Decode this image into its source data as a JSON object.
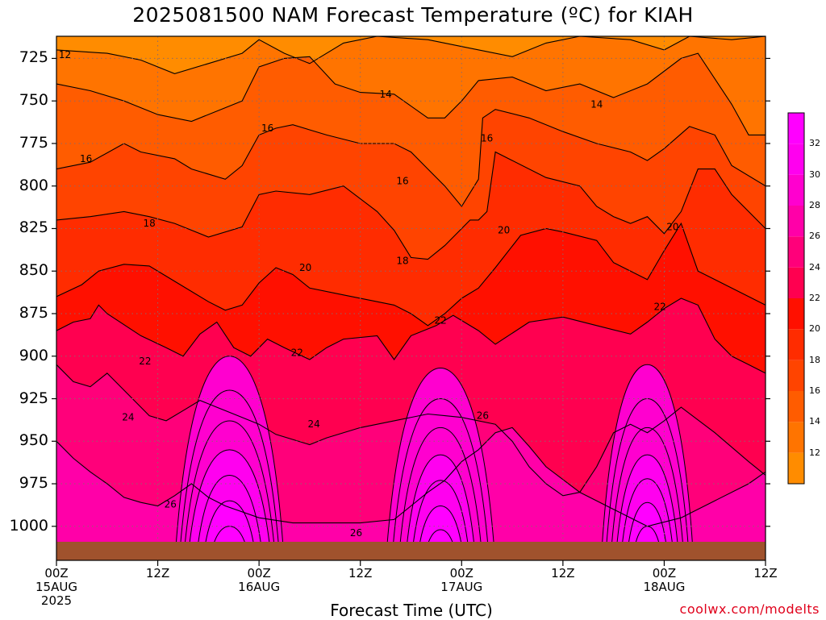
{
  "title": "2025081500 NAM Forecast Temperature (ºC) for KIAH",
  "xlabel": "Forecast Time (UTC)",
  "credit": "coolwx.com/modelts",
  "chart_data": {
    "type": "contour",
    "ylabel": "",
    "y_levels": [
      "725",
      "750",
      "775",
      "800",
      "825",
      "850",
      "875",
      "900",
      "925",
      "950",
      "975",
      "1000"
    ],
    "y_range_hpa": [
      712,
      1020
    ],
    "x_ticks": [
      {
        "hour": 0,
        "lines": [
          "00Z",
          "15AUG",
          "2025"
        ]
      },
      {
        "hour": 12,
        "lines": [
          "12Z"
        ]
      },
      {
        "hour": 24,
        "lines": [
          "00Z",
          "16AUG"
        ]
      },
      {
        "hour": 36,
        "lines": [
          "12Z"
        ]
      },
      {
        "hour": 48,
        "lines": [
          "00Z",
          "17AUG"
        ]
      },
      {
        "hour": 60,
        "lines": [
          "12Z"
        ]
      },
      {
        "hour": 72,
        "lines": [
          "00Z",
          "18AUG"
        ]
      },
      {
        "hour": 84,
        "lines": [
          "12Z"
        ]
      }
    ],
    "x_range_hours": [
      0,
      84
    ],
    "colorbar": {
      "ticks": [
        "12",
        "14",
        "16",
        "18",
        "20",
        "22",
        "24",
        "26",
        "28",
        "30",
        "32"
      ],
      "colors": [
        "#ff8c00",
        "#ff7400",
        "#ff5c00",
        "#ff4400",
        "#ff2c00",
        "#ff1000",
        "#ff0050",
        "#ff007a",
        "#ff00a8",
        "#ff00cf",
        "#ff00ef",
        "#ff00ff"
      ]
    },
    "isotherms": [
      {
        "temp": 12,
        "points": [
          [
            0,
            720
          ],
          [
            6,
            722
          ],
          [
            10,
            726
          ],
          [
            14,
            734
          ],
          [
            18,
            728
          ],
          [
            22,
            722
          ],
          [
            24,
            714
          ],
          [
            27,
            722
          ],
          [
            30,
            728
          ],
          [
            34,
            716
          ],
          [
            38,
            712
          ],
          [
            44,
            714
          ],
          [
            48,
            718
          ],
          [
            54,
            724
          ],
          [
            58,
            716
          ],
          [
            62,
            712
          ],
          [
            68,
            714
          ],
          [
            72,
            720
          ],
          [
            75,
            712
          ],
          [
            80,
            714
          ],
          [
            84,
            712
          ]
        ]
      },
      {
        "temp": 14,
        "points": [
          [
            0,
            740
          ],
          [
            4,
            744
          ],
          [
            8,
            750
          ],
          [
            12,
            758
          ],
          [
            16,
            762
          ],
          [
            20,
            754
          ],
          [
            22,
            750
          ],
          [
            24,
            730
          ],
          [
            27,
            725
          ],
          [
            30,
            724
          ],
          [
            33,
            740
          ],
          [
            36,
            745
          ],
          [
            40,
            746
          ],
          [
            44,
            760
          ],
          [
            46,
            760
          ],
          [
            48,
            750
          ],
          [
            50,
            738
          ],
          [
            54,
            736
          ],
          [
            58,
            744
          ],
          [
            62,
            740
          ],
          [
            66,
            748
          ],
          [
            70,
            740
          ],
          [
            74,
            725
          ],
          [
            76,
            722
          ],
          [
            80,
            752
          ],
          [
            82,
            770
          ],
          [
            84,
            770
          ]
        ]
      },
      {
        "temp": 16,
        "points": [
          [
            0,
            790
          ],
          [
            4,
            786
          ],
          [
            8,
            775
          ],
          [
            10,
            780
          ],
          [
            14,
            784
          ],
          [
            16,
            790
          ],
          [
            20,
            796
          ],
          [
            22,
            788
          ],
          [
            24,
            770
          ],
          [
            26,
            766
          ],
          [
            28,
            764
          ],
          [
            32,
            770
          ],
          [
            36,
            775
          ],
          [
            40,
            775
          ],
          [
            42,
            780
          ],
          [
            44,
            790
          ],
          [
            46,
            800
          ],
          [
            48,
            812
          ],
          [
            50,
            796
          ],
          [
            50.5,
            760
          ],
          [
            52,
            755
          ],
          [
            56,
            760
          ],
          [
            60,
            768
          ],
          [
            64,
            775
          ],
          [
            68,
            780
          ],
          [
            70,
            785
          ],
          [
            72,
            778
          ],
          [
            75,
            765
          ],
          [
            78,
            770
          ],
          [
            80,
            788
          ],
          [
            84,
            800
          ]
        ]
      },
      {
        "temp": 18,
        "points": [
          [
            0,
            820
          ],
          [
            4,
            818
          ],
          [
            8,
            815
          ],
          [
            11,
            818
          ],
          [
            14,
            822
          ],
          [
            18,
            830
          ],
          [
            22,
            824
          ],
          [
            24,
            805
          ],
          [
            26,
            803
          ],
          [
            30,
            805
          ],
          [
            34,
            800
          ],
          [
            38,
            815
          ],
          [
            40,
            826
          ],
          [
            42,
            842
          ],
          [
            44,
            843
          ],
          [
            46,
            835
          ],
          [
            48,
            825
          ],
          [
            49,
            820
          ],
          [
            50,
            820
          ],
          [
            51,
            815
          ],
          [
            52,
            780
          ],
          [
            54,
            785
          ],
          [
            58,
            795
          ],
          [
            62,
            800
          ],
          [
            64,
            812
          ],
          [
            66,
            818
          ],
          [
            68,
            822
          ],
          [
            70,
            818
          ],
          [
            72,
            828
          ],
          [
            74,
            815
          ],
          [
            76,
            790
          ],
          [
            78,
            790
          ],
          [
            80,
            805
          ],
          [
            82,
            815
          ],
          [
            84,
            825
          ]
        ]
      },
      {
        "temp": 20,
        "points": [
          [
            0,
            865
          ],
          [
            3,
            858
          ],
          [
            5,
            850
          ],
          [
            8,
            846
          ],
          [
            11,
            847
          ],
          [
            14,
            856
          ],
          [
            18,
            868
          ],
          [
            20,
            873
          ],
          [
            22,
            870
          ],
          [
            24,
            857
          ],
          [
            26,
            848
          ],
          [
            28,
            852
          ],
          [
            30,
            860
          ],
          [
            34,
            864
          ],
          [
            38,
            868
          ],
          [
            40,
            870
          ],
          [
            42,
            875
          ],
          [
            44,
            882
          ],
          [
            46,
            875
          ],
          [
            48,
            866
          ],
          [
            50,
            860
          ],
          [
            52,
            848
          ],
          [
            55,
            829
          ],
          [
            58,
            825
          ],
          [
            60,
            827
          ],
          [
            64,
            832
          ],
          [
            66,
            845
          ],
          [
            70,
            855
          ],
          [
            72,
            838
          ],
          [
            74,
            822
          ],
          [
            76,
            850
          ],
          [
            80,
            860
          ],
          [
            84,
            870
          ]
        ]
      },
      {
        "temp": 22,
        "points": [
          [
            0,
            885
          ],
          [
            2,
            880
          ],
          [
            4,
            878
          ],
          [
            5,
            870
          ],
          [
            6,
            875
          ],
          [
            10,
            888
          ],
          [
            13,
            895
          ],
          [
            15,
            900
          ],
          [
            17,
            887
          ],
          [
            19,
            880
          ],
          [
            21,
            895
          ],
          [
            23,
            900
          ],
          [
            25,
            890
          ],
          [
            27,
            895
          ],
          [
            30,
            902
          ],
          [
            32,
            895
          ],
          [
            34,
            890
          ],
          [
            38,
            888
          ],
          [
            40,
            902
          ],
          [
            42,
            888
          ],
          [
            45,
            882
          ],
          [
            47,
            876
          ],
          [
            50,
            885
          ],
          [
            52,
            893
          ],
          [
            56,
            880
          ],
          [
            60,
            877
          ],
          [
            64,
            882
          ],
          [
            68,
            887
          ],
          [
            70,
            880
          ],
          [
            72,
            872
          ],
          [
            74,
            866
          ],
          [
            76,
            870
          ],
          [
            78,
            890
          ],
          [
            80,
            900
          ],
          [
            82,
            905
          ],
          [
            84,
            910
          ]
        ]
      },
      {
        "temp": 24,
        "points": [
          [
            0,
            905
          ],
          [
            2,
            915
          ],
          [
            4,
            918
          ],
          [
            6,
            910
          ],
          [
            9,
            925
          ],
          [
            11,
            935
          ],
          [
            13,
            938
          ],
          [
            15,
            932
          ],
          [
            17,
            926
          ],
          [
            19,
            930
          ],
          [
            22,
            936
          ],
          [
            24,
            940
          ],
          [
            26,
            946
          ],
          [
            30,
            952
          ],
          [
            32,
            948
          ],
          [
            36,
            942
          ],
          [
            40,
            938
          ],
          [
            44,
            934
          ],
          [
            46,
            935
          ],
          [
            48,
            936
          ],
          [
            52,
            940
          ],
          [
            54,
            950
          ],
          [
            56,
            965
          ],
          [
            58,
            975
          ],
          [
            60,
            982
          ],
          [
            62,
            980
          ],
          [
            64,
            965
          ],
          [
            66,
            945
          ],
          [
            68,
            940
          ],
          [
            70,
            945
          ],
          [
            72,
            938
          ],
          [
            74,
            930
          ],
          [
            78,
            945
          ],
          [
            82,
            962
          ],
          [
            84,
            970
          ]
        ]
      },
      {
        "temp": 26,
        "points": [
          [
            0,
            950
          ],
          [
            2,
            960
          ],
          [
            4,
            968
          ],
          [
            6,
            975
          ],
          [
            8,
            983
          ],
          [
            10,
            986
          ],
          [
            12,
            988
          ],
          [
            14,
            982
          ],
          [
            16,
            975
          ],
          [
            18,
            983
          ],
          [
            20,
            988
          ],
          [
            24,
            995
          ],
          [
            28,
            998
          ],
          [
            32,
            998
          ],
          [
            36,
            998
          ],
          [
            40,
            996
          ],
          [
            42,
            988
          ],
          [
            44,
            980
          ],
          [
            46,
            973
          ],
          [
            48,
            962
          ],
          [
            50,
            955
          ],
          [
            52,
            945
          ],
          [
            54,
            942
          ],
          [
            56,
            953
          ],
          [
            58,
            965
          ],
          [
            62,
            980
          ],
          [
            66,
            990
          ],
          [
            70,
            1000
          ],
          [
            74,
            995
          ],
          [
            78,
            985
          ],
          [
            82,
            975
          ],
          [
            84,
            968
          ]
        ]
      }
    ],
    "contour_labels": [
      {
        "text": "12",
        "hour": 1,
        "hpa": 723
      },
      {
        "text": "14",
        "hour": 39,
        "hpa": 746
      },
      {
        "text": "14",
        "hour": 64,
        "hpa": 752
      },
      {
        "text": "16",
        "hour": 3.5,
        "hpa": 784
      },
      {
        "text": "16",
        "hour": 25,
        "hpa": 766
      },
      {
        "text": "16",
        "hour": 41,
        "hpa": 797
      },
      {
        "text": "16",
        "hour": 51,
        "hpa": 772
      },
      {
        "text": "18",
        "hour": 11,
        "hpa": 822
      },
      {
        "text": "18",
        "hour": 41,
        "hpa": 844
      },
      {
        "text": "20",
        "hour": 29.5,
        "hpa": 848
      },
      {
        "text": "20",
        "hour": 53,
        "hpa": 826
      },
      {
        "text": "20",
        "hour": 73,
        "hpa": 824
      },
      {
        "text": "22",
        "hour": 10.5,
        "hpa": 903
      },
      {
        "text": "22",
        "hour": 28.5,
        "hpa": 898
      },
      {
        "text": "22",
        "hour": 45.5,
        "hpa": 879
      },
      {
        "text": "22",
        "hour": 71.5,
        "hpa": 871
      },
      {
        "text": "24",
        "hour": 8.5,
        "hpa": 936
      },
      {
        "text": "24",
        "hour": 30.5,
        "hpa": 940
      },
      {
        "text": "26",
        "hour": 13.5,
        "hpa": 987
      },
      {
        "text": "26",
        "hour": 35.5,
        "hpa": 1004
      },
      {
        "text": "26",
        "hour": 50.5,
        "hpa": 935
      }
    ],
    "warm_cores": [
      {
        "hour": 20.5,
        "rings": [
          [
            900,
            6.5
          ],
          [
            920,
            6
          ],
          [
            938,
            5.5
          ],
          [
            955,
            5
          ],
          [
            970,
            4
          ],
          [
            985,
            3.2
          ],
          [
            1000,
            2.4
          ],
          [
            1012,
            1.6
          ]
        ]
      },
      {
        "hour": 45.5,
        "rings": [
          [
            907,
            6.5
          ],
          [
            925,
            5.8
          ],
          [
            942,
            5
          ],
          [
            958,
            4.2
          ],
          [
            973,
            3.5
          ],
          [
            988,
            2.8
          ],
          [
            1002,
            2
          ],
          [
            1012,
            1.4
          ]
        ]
      },
      {
        "hour": 70,
        "rings": [
          [
            905,
            5.5
          ],
          [
            925,
            5
          ],
          [
            942,
            4.4
          ],
          [
            958,
            3.8
          ],
          [
            972,
            3.2
          ],
          [
            986,
            2.5
          ],
          [
            1000,
            1.8
          ],
          [
            1010,
            1.2
          ]
        ]
      }
    ],
    "surface_terrain_color": "#a0522d"
  }
}
